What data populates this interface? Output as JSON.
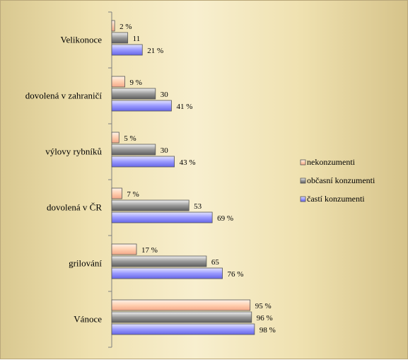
{
  "chart_data": {
    "type": "bar",
    "orientation": "horizontal",
    "categories": [
      "Velikonoce",
      "dovolená v zahraničí",
      "výlovy rybníků",
      "dovolená v ČR",
      "grilování",
      "Vánoce"
    ],
    "series": [
      {
        "name": "nekonzumenti",
        "values": [
          2,
          9,
          5,
          7,
          17,
          95
        ],
        "labels": [
          "2 %",
          "9 %",
          "5 %",
          "7 %",
          "17 %",
          "95 %"
        ],
        "color": "#ffcfb0"
      },
      {
        "name": "občasní konzumenti",
        "values": [
          11,
          30,
          30,
          53,
          65,
          96
        ],
        "labels": [
          "11",
          "30",
          "30",
          "53",
          "65",
          "96 %"
        ],
        "color": "#a8a8a8"
      },
      {
        "name": "častí konzumenti",
        "values": [
          21,
          41,
          43,
          69,
          76,
          98
        ],
        "labels": [
          "21 %",
          "41 %",
          "43 %",
          "69 %",
          "76 %",
          "98 %"
        ],
        "color": "#9a9aff"
      }
    ],
    "xlim": [
      0,
      100
    ],
    "grid": false,
    "legend_position": "right",
    "title": "",
    "xlabel": "",
    "ylabel": ""
  }
}
